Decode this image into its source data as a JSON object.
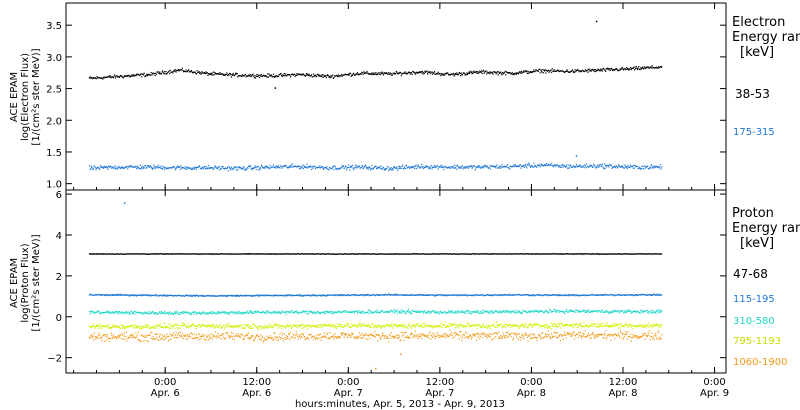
{
  "chart_data": [
    {
      "type": "scatter",
      "panel": "electron",
      "ylabel_lines": [
        "ACE EPAM",
        "log(Electron Flux)",
        "[1/(cm²s ster MeV)]"
      ],
      "ylim": [
        0.9,
        3.85
      ],
      "yticks": [
        1.0,
        1.5,
        2.0,
        2.5,
        3.0,
        3.5
      ],
      "ytick_labels": [
        "1.0",
        "1.5",
        "2.0",
        "2.5",
        "3.0",
        "3.5"
      ],
      "legend_title": [
        "Electron",
        "Energy ranges"
      ],
      "legend_unit": "[keV]",
      "legend_placement": "right",
      "series": [
        {
          "name": "38-53",
          "color": "#000000",
          "x": [
            0,
            6,
            12,
            18,
            24,
            30,
            36,
            42,
            48,
            54,
            60,
            66,
            72,
            78,
            84,
            90,
            96,
            102,
            108,
            114
          ],
          "values": [
            2.67,
            2.7,
            2.73,
            2.8,
            2.74,
            2.72,
            2.71,
            2.73,
            2.7,
            2.75,
            2.74,
            2.77,
            2.73,
            2.77,
            2.75,
            2.79,
            2.78,
            2.8,
            2.82,
            2.85
          ],
          "spread": 0.04,
          "outliers": [
            [
              101,
              3.57
            ],
            [
              37,
              2.52
            ]
          ]
        },
        {
          "name": "175-315",
          "color": "#1f77d4",
          "x": [
            0,
            6,
            12,
            18,
            24,
            30,
            36,
            42,
            48,
            54,
            60,
            66,
            72,
            78,
            84,
            90,
            96,
            102,
            108,
            114
          ],
          "values": [
            1.25,
            1.27,
            1.27,
            1.26,
            1.26,
            1.25,
            1.27,
            1.28,
            1.26,
            1.27,
            1.25,
            1.28,
            1.27,
            1.27,
            1.28,
            1.3,
            1.28,
            1.29,
            1.27,
            1.27
          ],
          "spread": 0.05,
          "outliers": [
            [
              56,
              0.95
            ],
            [
              97,
              1.45
            ]
          ]
        }
      ]
    },
    {
      "type": "scatter",
      "panel": "proton",
      "ylabel_lines": [
        "ACE EPAM",
        "log(Proton Flux)",
        "[1/(cm²s ster MeV)]"
      ],
      "ylim": [
        -2.75,
        6.2
      ],
      "yticks": [
        -2,
        0,
        2,
        4,
        6
      ],
      "ytick_labels": [
        "−2",
        "0",
        "2",
        "4",
        "6"
      ],
      "legend_title": [
        "Proton",
        "Energy ranges"
      ],
      "legend_unit": "[keV]",
      "legend_placement": "right",
      "series": [
        {
          "name": "47-68",
          "color": "#000000",
          "x": [
            0,
            12,
            24,
            36,
            48,
            60,
            72,
            84,
            96,
            108,
            114
          ],
          "values": [
            3.1,
            3.1,
            3.1,
            3.1,
            3.1,
            3.1,
            3.1,
            3.1,
            3.1,
            3.1,
            3.1
          ],
          "spread": 0.02,
          "outliers": []
        },
        {
          "name": "115-195",
          "color": "#1f77d4",
          "x": [
            0,
            12,
            24,
            36,
            48,
            60,
            72,
            84,
            96,
            108,
            114
          ],
          "values": [
            1.1,
            1.08,
            1.05,
            1.07,
            1.08,
            1.1,
            1.08,
            1.1,
            1.08,
            1.1,
            1.1
          ],
          "spread": 0.05,
          "outliers": [
            [
              7,
              5.6
            ]
          ]
        },
        {
          "name": "310-580",
          "color": "#1fd6c8",
          "x": [
            0,
            12,
            24,
            36,
            48,
            60,
            72,
            84,
            96,
            108,
            114
          ],
          "values": [
            0.25,
            0.22,
            0.22,
            0.25,
            0.25,
            0.28,
            0.25,
            0.27,
            0.3,
            0.28,
            0.28
          ],
          "spread": 0.12,
          "outliers": []
        },
        {
          "name": "795-1193",
          "color": "#d2ee00",
          "x": [
            0,
            12,
            24,
            36,
            48,
            60,
            72,
            84,
            96,
            108,
            114
          ],
          "values": [
            -0.45,
            -0.45,
            -0.42,
            -0.45,
            -0.4,
            -0.42,
            -0.4,
            -0.42,
            -0.38,
            -0.4,
            -0.4
          ],
          "spread": 0.18,
          "outliers": []
        },
        {
          "name": "1060-1900",
          "color": "#f09a1a",
          "x": [
            0,
            12,
            24,
            36,
            48,
            60,
            72,
            84,
            96,
            108,
            114
          ],
          "values": [
            -0.95,
            -0.95,
            -0.92,
            -0.95,
            -0.9,
            -0.92,
            -0.9,
            -0.92,
            -0.88,
            -0.9,
            -0.9
          ],
          "spread": 0.3,
          "outliers": [
            [
              57,
              -2.5
            ],
            [
              62,
              -1.8
            ]
          ]
        }
      ]
    }
  ],
  "xaxis": {
    "ticks": [
      {
        "hour": 6,
        "time": "0:00",
        "date": "Apr. 6"
      },
      {
        "hour": 18,
        "time": "12:00",
        "date": "Apr. 6"
      },
      {
        "hour": 30,
        "time": "0:00",
        "date": "Apr. 7"
      },
      {
        "hour": 42,
        "time": "12:00",
        "date": "Apr. 7"
      },
      {
        "hour": 54,
        "time": "0:00",
        "date": "Apr. 8"
      },
      {
        "hour": 66,
        "time": "12:00",
        "date": "Apr. 8"
      },
      {
        "hour": 78,
        "time": "0:00",
        "date": "Apr. 9"
      }
    ],
    "xlim_hours_from_apr5": [
      -7,
      79.5
    ],
    "data_range_hours_from_apr5": [
      -4,
      71
    ],
    "label": "hours:minutes, Apr.  5, 2013 - Apr.  9, 2013"
  }
}
